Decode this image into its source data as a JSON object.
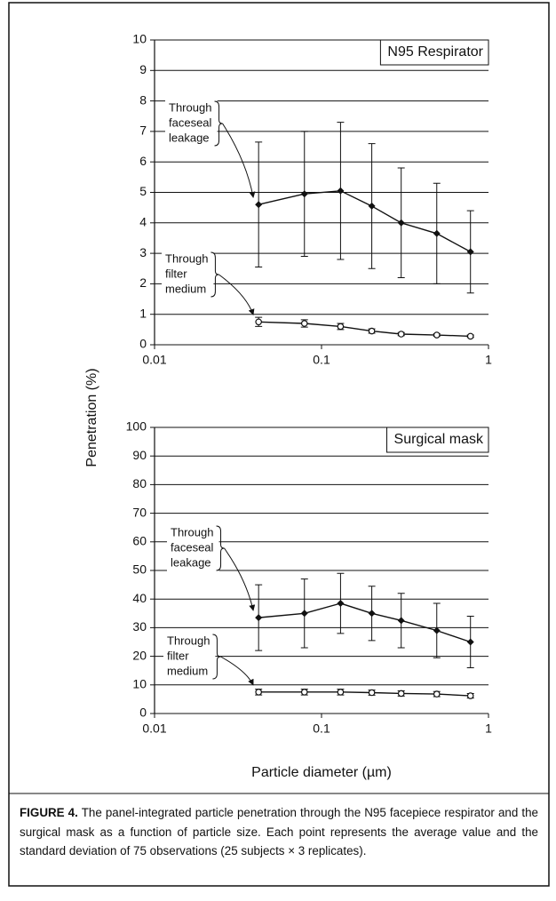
{
  "y_label": "Penetration (%)",
  "x_label": "Particle diameter (µm)",
  "caption": {
    "label": "FIGURE 4.",
    "text": "The panel-integrated particle penetration through the N95 facepiece respirator and the surgical mask as a function of particle size. Each point represents the average value and the standard deviation of 75 observations (25 subjects × 3 replicates)."
  },
  "chart_data": [
    {
      "type": "line",
      "title": "N95 Respirator",
      "log_x": true,
      "grid": true,
      "xlim": [
        0.01,
        1
      ],
      "xticks": [
        0.01,
        0.1,
        1
      ],
      "ylim": [
        0,
        10
      ],
      "yticks": [
        0,
        1,
        2,
        3,
        4,
        5,
        6,
        7,
        8,
        9,
        10
      ],
      "x": [
        0.042,
        0.079,
        0.13,
        0.2,
        0.3,
        0.49,
        0.78
      ],
      "series": [
        {
          "color": "#111111",
          "marker": "diamond",
          "values": [
            4.6,
            4.95,
            5.05,
            4.55,
            4.0,
            3.65,
            3.05
          ],
          "errors": [
            2.05,
            2.05,
            2.25,
            2.05,
            1.8,
            1.65,
            1.35
          ]
        },
        {
          "color": "#111111",
          "marker": "circle",
          "values": [
            0.75,
            0.7,
            0.6,
            0.45,
            0.35,
            0.32,
            0.28
          ],
          "errors": [
            0.15,
            0.12,
            0.1,
            0.07,
            0.05,
            0.04,
            0.04
          ]
        }
      ],
      "annotations": [
        {
          "lines": [
            "Through",
            "faceseal",
            "leakage"
          ]
        },
        {
          "lines": [
            "Through",
            "filter",
            "medium"
          ]
        }
      ]
    },
    {
      "type": "line",
      "title": "Surgical mask",
      "log_x": true,
      "grid": true,
      "xlim": [
        0.01,
        1
      ],
      "xticks": [
        0.01,
        0.1,
        1
      ],
      "ylim": [
        0,
        100
      ],
      "yticks": [
        0,
        10,
        20,
        30,
        40,
        50,
        60,
        70,
        80,
        90,
        100
      ],
      "x": [
        0.042,
        0.079,
        0.13,
        0.2,
        0.3,
        0.49,
        0.78
      ],
      "series": [
        {
          "color": "#111111",
          "marker": "diamond",
          "values": [
            33.5,
            35,
            38.5,
            35,
            32.5,
            29,
            25
          ],
          "errors": [
            11.5,
            12,
            10.5,
            9.5,
            9.5,
            9.5,
            9
          ]
        },
        {
          "color": "#111111",
          "marker": "circle",
          "values": [
            7.5,
            7.5,
            7.5,
            7.3,
            7,
            6.8,
            6.2
          ],
          "errors": [
            1,
            1,
            1,
            0.9,
            0.9,
            0.9,
            0.8
          ]
        }
      ],
      "annotations": [
        {
          "lines": [
            "Through",
            "faceseal",
            "leakage"
          ]
        },
        {
          "lines": [
            "Through",
            "filter",
            "medium"
          ]
        }
      ]
    }
  ]
}
